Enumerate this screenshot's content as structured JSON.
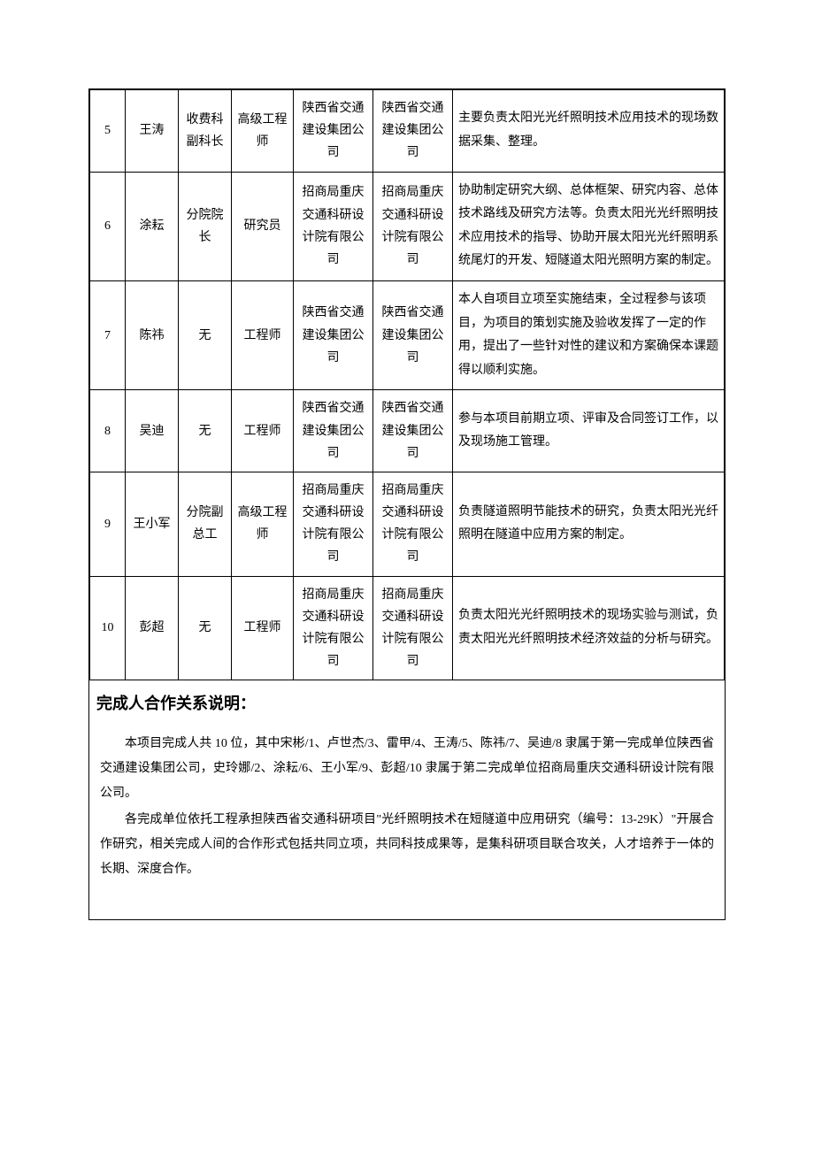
{
  "table": {
    "rows": [
      {
        "idx": "5",
        "name": "王涛",
        "position": "收费科副科长",
        "title": "高级工程师",
        "unit1": "陕西省交通建设集团公司",
        "unit2": "陕西省交通建设集团公司",
        "desc": "主要负责太阳光光纤照明技术应用技术的现场数据采集、整理。"
      },
      {
        "idx": "6",
        "name": "涂耘",
        "position": "分院院长",
        "title": "研究员",
        "unit1": "招商局重庆交通科研设计院有限公司",
        "unit2": "招商局重庆交通科研设计院有限公司",
        "desc": "协助制定研究大纲、总体框架、研究内容、总体技术路线及研究方法等。负责太阳光光纤照明技术应用技术的指导、协助开展太阳光光纤照明系统尾灯的开发、短隧道太阳光照明方案的制定。"
      },
      {
        "idx": "7",
        "name": "陈祎",
        "position": "无",
        "title": "工程师",
        "unit1": "陕西省交通建设集团公司",
        "unit2": "陕西省交通建设集团公司",
        "desc": "本人自项目立项至实施结束，全过程参与该项目，为项目的策划实施及验收发挥了一定的作用，提出了一些针对性的建议和方案确保本课题得以顺利实施。"
      },
      {
        "idx": "8",
        "name": "吴迪",
        "position": "无",
        "title": "工程师",
        "unit1": "陕西省交通建设集团公司",
        "unit2": "陕西省交通建设集团公司",
        "desc": "参与本项目前期立项、评审及合同签订工作，以及现场施工管理。"
      },
      {
        "idx": "9",
        "name": "王小军",
        "position": "分院副总工",
        "title": "高级工程师",
        "unit1": "招商局重庆交通科研设计院有限公司",
        "unit2": "招商局重庆交通科研设计院有限公司",
        "desc": "负责隧道照明节能技术的研究，负责太阳光光纤照明在隧道中应用方案的制定。"
      },
      {
        "idx": "10",
        "name": "彭超",
        "position": "无",
        "title": "工程师",
        "unit1": "招商局重庆交通科研设计院有限公司",
        "unit2": "招商局重庆交通科研设计院有限公司",
        "desc": "负责太阳光光纤照明技术的现场实验与测试，负责太阳光光纤照明技术经济效益的分析与研究。"
      }
    ]
  },
  "section": {
    "heading": "完成人合作关系说明：",
    "paragraphs": [
      "本项目完成人共 10 位，其中宋彬/1、卢世杰/3、雷甲/4、王涛/5、陈祎/7、吴迪/8 隶属于第一完成单位陕西省交通建设集团公司，史玲娜/2、涂耘/6、王小军/9、彭超/10 隶属于第二完成单位招商局重庆交通科研设计院有限公司。",
      "各完成单位依托工程承担陕西省交通科研项目\"光纤照明技术在短隧道中应用研究（编号：13-29K）\"开展合作研究，相关完成人间的合作形式包括共同立项，共同科技成果等，是集科研项目联合攻关，人才培养于一体的长期、深度合作。"
    ]
  }
}
